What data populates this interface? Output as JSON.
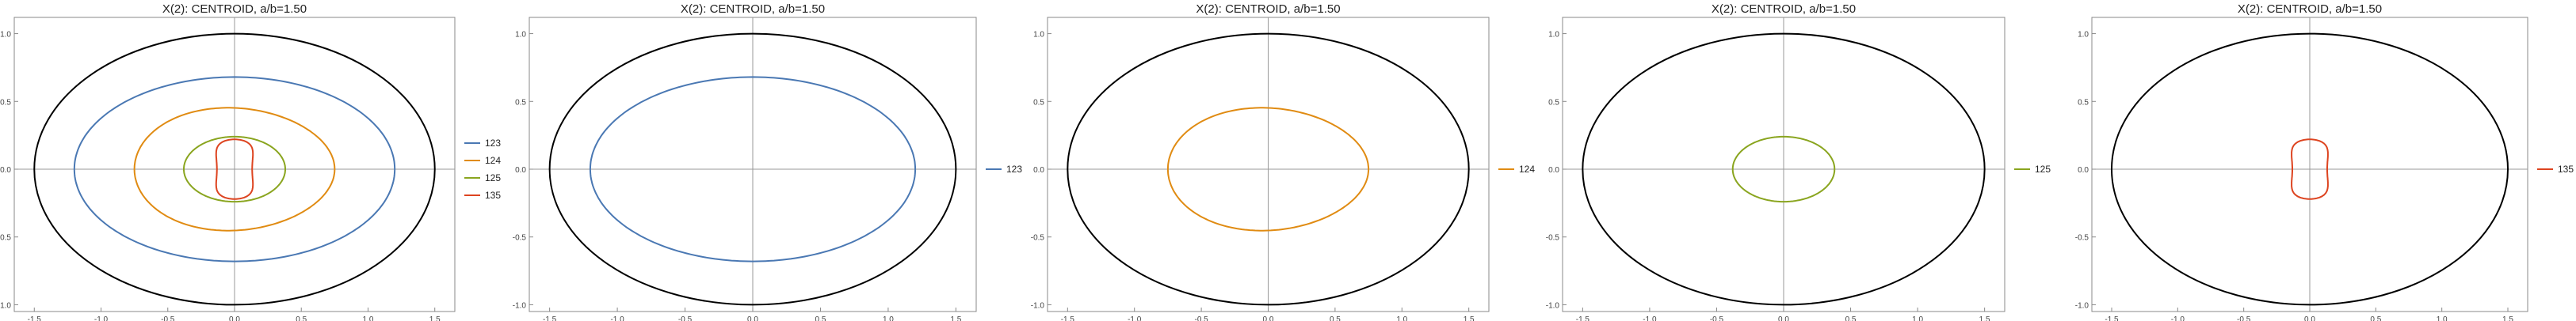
{
  "chart_data": [
    {
      "type": "line",
      "title": "X(2): CENTROID, a/b=1.50",
      "xlim": [
        -1.65,
        1.65
      ],
      "ylim": [
        -1.05,
        1.12
      ],
      "xticks": [
        -1.5,
        -1.0,
        -0.5,
        0.0,
        0.5,
        1.0,
        1.5
      ],
      "xtick_labels": [
        "-1.5",
        "-1.0",
        "-0.5",
        "0.0",
        "0.5",
        "1.0",
        "1.5"
      ],
      "yticks": [
        -1.0,
        -0.5,
        0.0,
        0.5,
        1.0
      ],
      "ytick_labels": [
        "-1.0",
        "-0.5",
        "0.0",
        "0.5",
        "1.0"
      ],
      "boundary": {
        "type": "ellipse",
        "a": 1.5,
        "b": 1.0,
        "color": "#000000"
      },
      "legend_position": "right",
      "series": [
        {
          "name": "123",
          "color": "#4a78b3",
          "shape": "ellipse",
          "a": 1.2,
          "b": 0.68
        },
        {
          "name": "124",
          "color": "#e08b12",
          "shape": "egg",
          "a": 0.75,
          "b": 0.45,
          "cx": 0.0
        },
        {
          "name": "125",
          "color": "#8aa51f",
          "shape": "ellipse",
          "a": 0.38,
          "b": 0.24
        },
        {
          "name": "135",
          "color": "#dd4420",
          "shape": "kidney",
          "a": 0.24,
          "b": 0.22
        }
      ]
    },
    {
      "type": "line",
      "title": "X(2): CENTROID, a/b=1.50",
      "xlim": [
        -1.65,
        1.65
      ],
      "ylim": [
        -1.05,
        1.12
      ],
      "xticks": [
        -1.5,
        -1.0,
        -0.5,
        0.0,
        0.5,
        1.0,
        1.5
      ],
      "xtick_labels": [
        "-1.5",
        "-1.0",
        "-0.5",
        "0.0",
        "0.5",
        "1.0",
        "1.5"
      ],
      "yticks": [
        -1.0,
        -0.5,
        0.0,
        0.5,
        1.0
      ],
      "ytick_labels": [
        "-1.0",
        "-0.5",
        "0.0",
        "0.5",
        "1.0"
      ],
      "boundary": {
        "type": "ellipse",
        "a": 1.5,
        "b": 1.0,
        "color": "#000000"
      },
      "legend_position": "right",
      "series": [
        {
          "name": "123",
          "color": "#4a78b3",
          "shape": "ellipse",
          "a": 1.2,
          "b": 0.68
        }
      ]
    },
    {
      "type": "line",
      "title": "X(2): CENTROID, a/b=1.50",
      "xlim": [
        -1.65,
        1.65
      ],
      "ylim": [
        -1.05,
        1.12
      ],
      "xticks": [
        -1.5,
        -1.0,
        -0.5,
        0.0,
        0.5,
        1.0,
        1.5
      ],
      "xtick_labels": [
        "-1.5",
        "-1.0",
        "-0.5",
        "0.0",
        "0.5",
        "1.0",
        "1.5"
      ],
      "yticks": [
        -1.0,
        -0.5,
        0.0,
        0.5,
        1.0
      ],
      "ytick_labels": [
        "-1.0",
        "-0.5",
        "0.0",
        "0.5",
        "1.0"
      ],
      "boundary": {
        "type": "ellipse",
        "a": 1.5,
        "b": 1.0,
        "color": "#000000"
      },
      "legend_position": "right",
      "series": [
        {
          "name": "124",
          "color": "#e08b12",
          "shape": "egg",
          "a": 0.75,
          "b": 0.45,
          "cx": 0.0
        }
      ]
    },
    {
      "type": "line",
      "title": "X(2): CENTROID, a/b=1.50",
      "xlim": [
        -1.65,
        1.65
      ],
      "ylim": [
        -1.05,
        1.12
      ],
      "xticks": [
        -1.5,
        -1.0,
        -0.5,
        0.0,
        0.5,
        1.0,
        1.5
      ],
      "xtick_labels": [
        "-1.5",
        "-1.0",
        "-0.5",
        "0.0",
        "0.5",
        "1.0",
        "1.5"
      ],
      "yticks": [
        -1.0,
        -0.5,
        0.0,
        0.5,
        1.0
      ],
      "ytick_labels": [
        "-1.0",
        "-0.5",
        "0.0",
        "0.5",
        "1.0"
      ],
      "boundary": {
        "type": "ellipse",
        "a": 1.5,
        "b": 1.0,
        "color": "#000000"
      },
      "legend_position": "right",
      "series": [
        {
          "name": "125",
          "color": "#8aa51f",
          "shape": "ellipse",
          "a": 0.38,
          "b": 0.24
        }
      ]
    },
    {
      "type": "line",
      "title": "X(2): CENTROID, a/b=1.50",
      "xlim": [
        -1.65,
        1.65
      ],
      "ylim": [
        -1.05,
        1.12
      ],
      "xticks": [
        -1.5,
        -1.0,
        -0.5,
        0.0,
        0.5,
        1.0,
        1.5
      ],
      "xtick_labels": [
        "-1.5",
        "-1.0",
        "-0.5",
        "0.0",
        "0.5",
        "1.0",
        "1.5"
      ],
      "yticks": [
        -1.0,
        -0.5,
        0.0,
        0.5,
        1.0
      ],
      "ytick_labels": [
        "-1.0",
        "-0.5",
        "0.0",
        "0.5",
        "1.0"
      ],
      "boundary": {
        "type": "ellipse",
        "a": 1.5,
        "b": 1.0,
        "color": "#000000"
      },
      "legend_position": "right",
      "series": [
        {
          "name": "135",
          "color": "#dd4420",
          "shape": "kidney",
          "a": 0.24,
          "b": 0.22
        }
      ]
    }
  ]
}
